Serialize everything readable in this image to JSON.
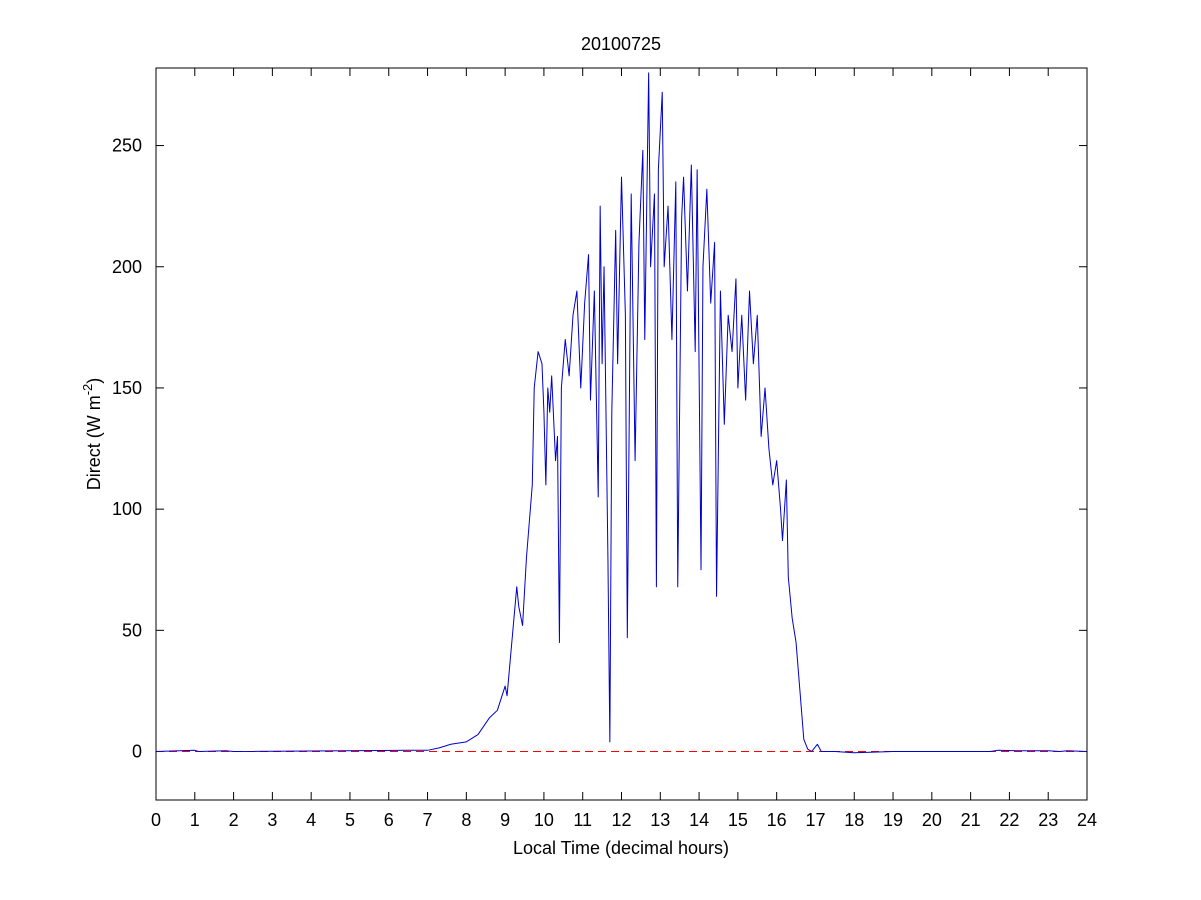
{
  "chart_data": {
    "type": "line",
    "title": "20100725",
    "xlabel": "Local Time (decimal hours)",
    "ylabel": [
      "Direct (W m",
      "-2",
      ")"
    ],
    "xlim": [
      0,
      24
    ],
    "xticks": [
      0,
      1,
      2,
      3,
      4,
      5,
      6,
      7,
      8,
      9,
      10,
      11,
      12,
      13,
      14,
      15,
      16,
      17,
      18,
      19,
      20,
      21,
      22,
      23,
      24
    ],
    "ylim": [
      -20,
      282
    ],
    "yticks": [
      0,
      50,
      100,
      150,
      200,
      250
    ],
    "reference_line": {
      "value": 0,
      "color": "#ff0000"
    },
    "series": [
      {
        "color": "#0000cc",
        "x": [
          0,
          1,
          1.1,
          1.8,
          2,
          6.5,
          7,
          7.3,
          7.6,
          8,
          8.3,
          8.6,
          8.8,
          9,
          9.05,
          9.2,
          9.3,
          9.35,
          9.45,
          9.55,
          9.7,
          9.75,
          9.85,
          9.95,
          10,
          10.05,
          10.1,
          10.15,
          10.2,
          10.3,
          10.35,
          10.4,
          10.45,
          10.55,
          10.65,
          10.75,
          10.85,
          10.95,
          11.05,
          11.15,
          11.2,
          11.3,
          11.4,
          11.45,
          11.5,
          11.55,
          11.65,
          11.7,
          11.75,
          11.85,
          11.9,
          12,
          12.1,
          12.15,
          12.25,
          12.35,
          12.45,
          12.55,
          12.6,
          12.7,
          12.75,
          12.85,
          12.9,
          12.95,
          13.05,
          13.1,
          13.2,
          13.3,
          13.4,
          13.45,
          13.55,
          13.6,
          13.7,
          13.8,
          13.9,
          13.95,
          14.05,
          14.1,
          14.2,
          14.3,
          14.4,
          14.45,
          14.55,
          14.65,
          14.75,
          14.85,
          14.95,
          15,
          15.1,
          15.2,
          15.3,
          15.4,
          15.5,
          15.6,
          15.7,
          15.8,
          15.9,
          16,
          16.1,
          16.15,
          16.25,
          16.3,
          16.4,
          16.5,
          16.6,
          16.7,
          16.8,
          16.9,
          17.05,
          17.15,
          17.5,
          18,
          19,
          21.5,
          21.7,
          22.3,
          23,
          23.3,
          23.5,
          24
        ],
        "values": [
          0,
          0.5,
          0,
          0.3,
          0,
          0.5,
          0.5,
          1.5,
          3,
          4,
          7,
          14,
          17,
          27,
          23,
          50,
          68,
          60,
          52,
          80,
          110,
          150,
          165,
          160,
          140,
          110,
          150,
          140,
          155,
          120,
          130,
          45,
          150,
          170,
          155,
          180,
          190,
          150,
          185,
          205,
          145,
          190,
          105,
          225,
          160,
          200,
          80,
          4,
          140,
          215,
          160,
          237,
          180,
          47,
          230,
          120,
          210,
          248,
          170,
          280,
          200,
          230,
          68,
          240,
          272,
          200,
          225,
          170,
          235,
          68,
          220,
          237,
          190,
          242,
          165,
          240,
          75,
          200,
          232,
          185,
          210,
          64,
          190,
          135,
          180,
          165,
          195,
          150,
          180,
          145,
          190,
          160,
          180,
          130,
          150,
          125,
          110,
          120,
          100,
          87,
          112,
          72,
          55,
          45,
          25,
          5,
          1,
          0,
          3,
          0,
          0,
          -0.5,
          0,
          0,
          0.5,
          0.3,
          0.3,
          0,
          0.3,
          0
        ]
      }
    ]
  }
}
